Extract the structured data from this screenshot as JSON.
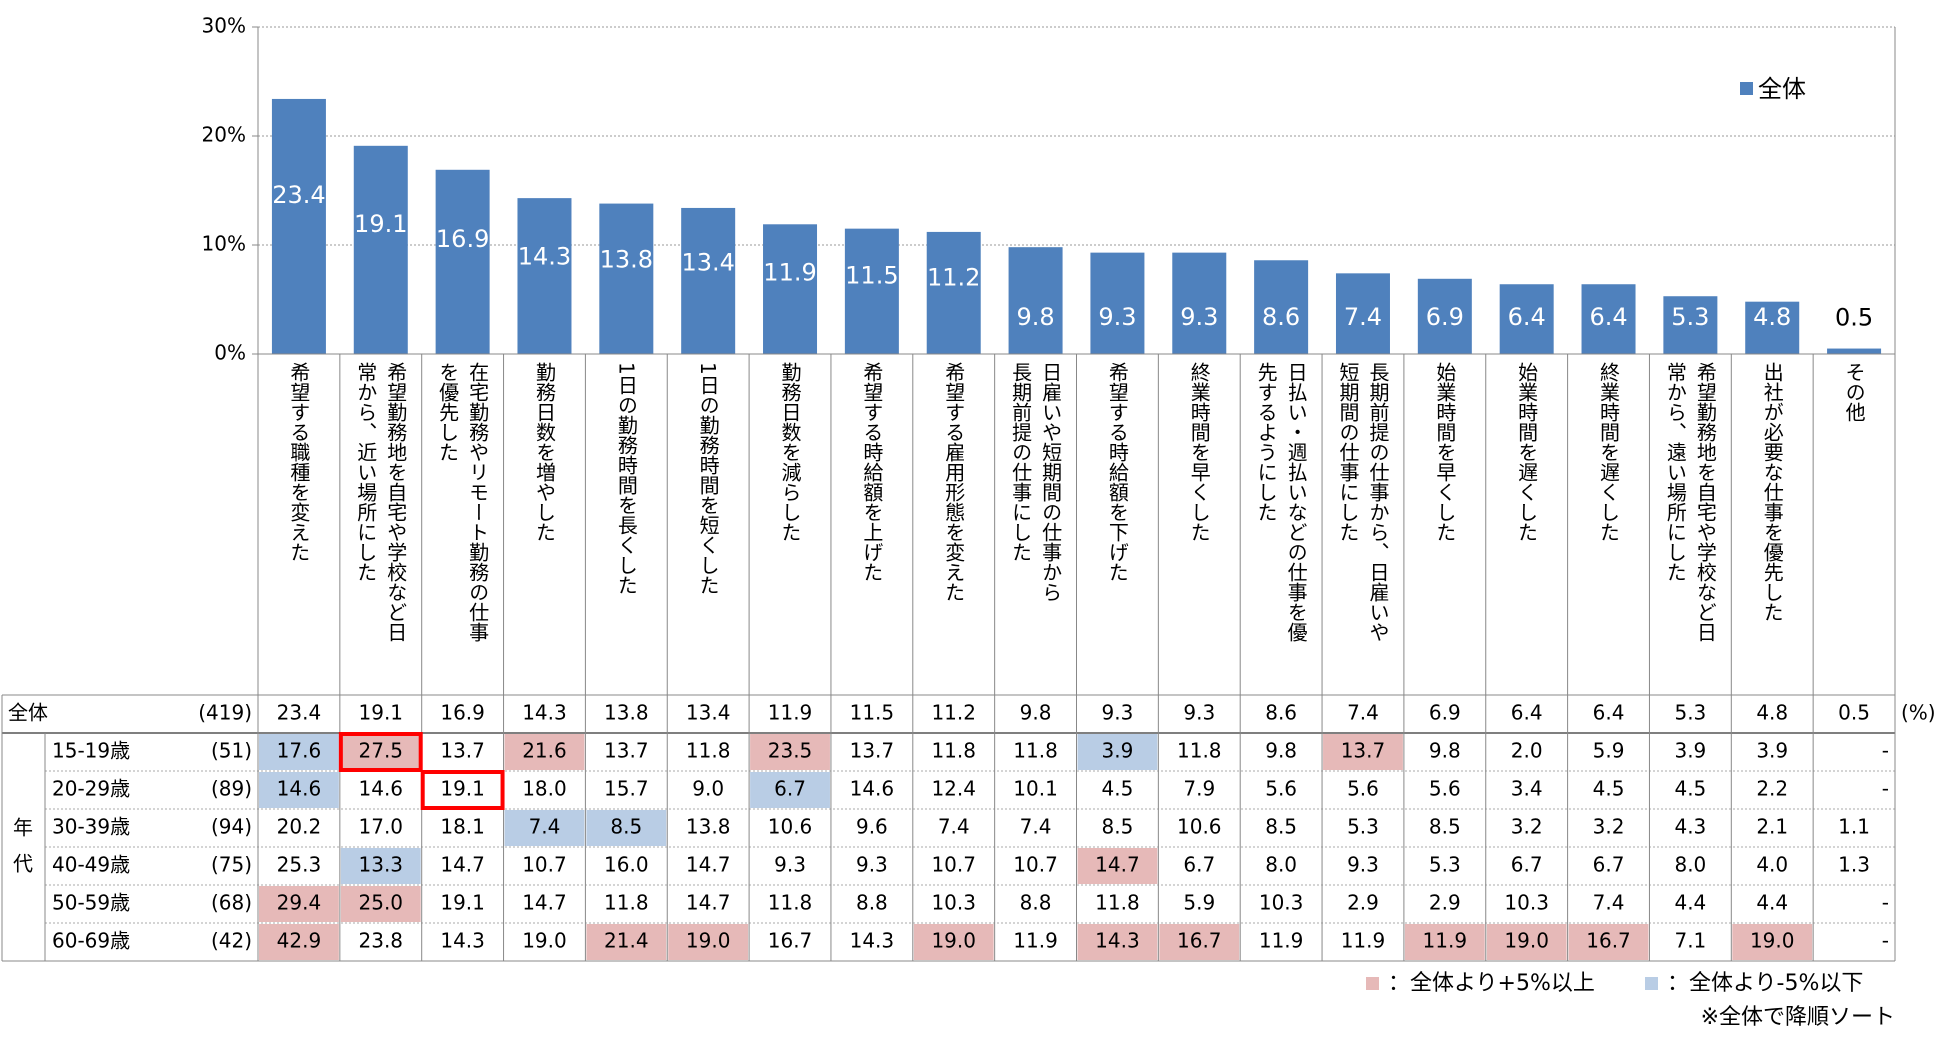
{
  "chart_data": {
    "type": "bar",
    "categories": [
      "希望する職種を変えた",
      "希望勤務地を自宅や学校など日常から、近い場所にした",
      "在宅勤務やリモート勤務の仕事を優先した",
      "勤務日数を増やした",
      "1日の勤務時間を長くした",
      "1日の勤務時間を短くした",
      "勤務日数を減らした",
      "希望する時給額を上げた",
      "希望する雇用形態を変えた",
      "日雇いや短期間の仕事から長期前提の仕事にした",
      "希望する時給額を下げた",
      "終業時間を早くした",
      "日払い・週払いなどの仕事を優先するようにした",
      "長期前提の仕事から、日雇いや短期間の仕事にした",
      "始業時間を早くした",
      "始業時間を遅くした",
      "終業時間を遅くした",
      "希望勤務地を自宅や学校など日常から、遠い場所にした",
      "出社が必要な仕事を優先した",
      "その他"
    ],
    "category_lines": [
      [
        "希望する職種を変えた"
      ],
      [
        "希望勤務地を自宅や学校など日",
        "常から、近い場所にした"
      ],
      [
        "在宅勤務やリモート勤務の仕事",
        "を優先した"
      ],
      [
        "勤務日数を増やした"
      ],
      [
        "1日の勤務時間を長くした"
      ],
      [
        "1日の勤務時間を短くした"
      ],
      [
        "勤務日数を減らした"
      ],
      [
        "希望する時給額を上げた"
      ],
      [
        "希望する雇用形態を変えた"
      ],
      [
        "日雇いや短期間の仕事から",
        "長期前提の仕事にした"
      ],
      [
        "希望する時給額を下げた"
      ],
      [
        "終業時間を早くした"
      ],
      [
        "日払い・週払いなどの仕事を優",
        "先するようにした"
      ],
      [
        "長期前提の仕事から、日雇いや",
        "短期間の仕事にした"
      ],
      [
        "始業時間を早くした"
      ],
      [
        "始業時間を遅くした"
      ],
      [
        "終業時間を遅くした"
      ],
      [
        "希望勤務地を自宅や学校など日",
        "常から、遠い場所にした"
      ],
      [
        "出社が必要な仕事を優先した"
      ],
      [
        "その他"
      ]
    ],
    "series": [
      {
        "name": "全体",
        "values": [
          23.4,
          19.1,
          16.9,
          14.3,
          13.8,
          13.4,
          11.9,
          11.5,
          11.2,
          9.8,
          9.3,
          9.3,
          8.6,
          7.4,
          6.9,
          6.4,
          6.4,
          5.3,
          4.8,
          0.5
        ]
      }
    ],
    "value_labels": [
      "23.4",
      "19.1",
      "16.9",
      "14.3",
      "13.8",
      "13.4",
      "11.9",
      "11.5",
      "11.2",
      "9.8",
      "9.3",
      "9.3",
      "8.6",
      "7.4",
      "6.9",
      "6.4",
      "6.4",
      "5.3",
      "4.8",
      "0.5"
    ],
    "y_ticks": [
      "0%",
      "10%",
      "20%",
      "30%"
    ],
    "ylim": [
      0,
      30
    ],
    "grid": true,
    "legend_position": "top-right",
    "bar_color": "#4f81bd",
    "table": {
      "unit": "(%)",
      "group_label": "年代",
      "total_row": {
        "label": "全体",
        "n": "(419)",
        "values": [
          "23.4",
          "19.1",
          "16.9",
          "14.3",
          "13.8",
          "13.4",
          "11.9",
          "11.5",
          "11.2",
          "9.8",
          "9.3",
          "9.3",
          "8.6",
          "7.4",
          "6.9",
          "6.4",
          "6.4",
          "5.3",
          "4.8",
          "0.5"
        ]
      },
      "rows": [
        {
          "label": "15-19歳",
          "n": "(51)",
          "values": [
            "17.6",
            "27.5",
            "13.7",
            "21.6",
            "13.7",
            "11.8",
            "23.5",
            "13.7",
            "11.8",
            "11.8",
            "3.9",
            "11.8",
            "9.8",
            "13.7",
            "9.8",
            "2.0",
            "5.9",
            "3.9",
            "3.9",
            "-"
          ]
        },
        {
          "label": "20-29歳",
          "n": "(89)",
          "values": [
            "14.6",
            "14.6",
            "19.1",
            "18.0",
            "15.7",
            "9.0",
            "6.7",
            "14.6",
            "12.4",
            "10.1",
            "4.5",
            "7.9",
            "5.6",
            "5.6",
            "5.6",
            "3.4",
            "4.5",
            "4.5",
            "2.2",
            "-"
          ]
        },
        {
          "label": "30-39歳",
          "n": "(94)",
          "values": [
            "20.2",
            "17.0",
            "18.1",
            "7.4",
            "8.5",
            "13.8",
            "10.6",
            "9.6",
            "7.4",
            "7.4",
            "8.5",
            "10.6",
            "8.5",
            "5.3",
            "8.5",
            "3.2",
            "3.2",
            "4.3",
            "2.1",
            "1.1"
          ]
        },
        {
          "label": "40-49歳",
          "n": "(75)",
          "values": [
            "25.3",
            "13.3",
            "14.7",
            "10.7",
            "16.0",
            "14.7",
            "9.3",
            "9.3",
            "10.7",
            "10.7",
            "14.7",
            "6.7",
            "8.0",
            "9.3",
            "5.3",
            "6.7",
            "6.7",
            "8.0",
            "4.0",
            "1.3"
          ]
        },
        {
          "label": "50-59歳",
          "n": "(68)",
          "values": [
            "29.4",
            "25.0",
            "19.1",
            "14.7",
            "11.8",
            "14.7",
            "11.8",
            "8.8",
            "10.3",
            "8.8",
            "11.8",
            "5.9",
            "10.3",
            "2.9",
            "2.9",
            "10.3",
            "7.4",
            "4.4",
            "4.4",
            "-"
          ]
        },
        {
          "label": "60-69歳",
          "n": "(42)",
          "values": [
            "42.9",
            "23.8",
            "14.3",
            "19.0",
            "21.4",
            "19.0",
            "16.7",
            "14.3",
            "19.0",
            "11.9",
            "14.3",
            "16.7",
            "11.9",
            "11.9",
            "11.9",
            "19.0",
            "16.7",
            "7.1",
            "19.0",
            "-"
          ]
        }
      ],
      "highlight_high": [
        [
          0,
          1
        ],
        [
          0,
          3
        ],
        [
          0,
          6
        ],
        [
          0,
          13
        ],
        [
          3,
          10
        ],
        [
          4,
          0
        ],
        [
          4,
          1
        ],
        [
          5,
          0
        ],
        [
          5,
          4
        ],
        [
          5,
          5
        ],
        [
          5,
          8
        ],
        [
          5,
          10
        ],
        [
          5,
          11
        ],
        [
          5,
          14
        ],
        [
          5,
          15
        ],
        [
          5,
          16
        ],
        [
          5,
          18
        ]
      ],
      "highlight_low": [
        [
          0,
          0
        ],
        [
          0,
          10
        ],
        [
          1,
          0
        ],
        [
          1,
          6
        ],
        [
          2,
          3
        ],
        [
          2,
          4
        ],
        [
          3,
          1
        ]
      ],
      "boxed": [
        [
          0,
          1
        ],
        [
          1,
          2
        ]
      ],
      "high_color": "#e6b9b8",
      "low_color": "#b9cde5",
      "box_color": "#ff0000"
    },
    "notes": {
      "legend_high": "：全体より+5%以上",
      "legend_low": "：全体より-5%以下",
      "sort_note": "※全体で降順ソート"
    }
  }
}
